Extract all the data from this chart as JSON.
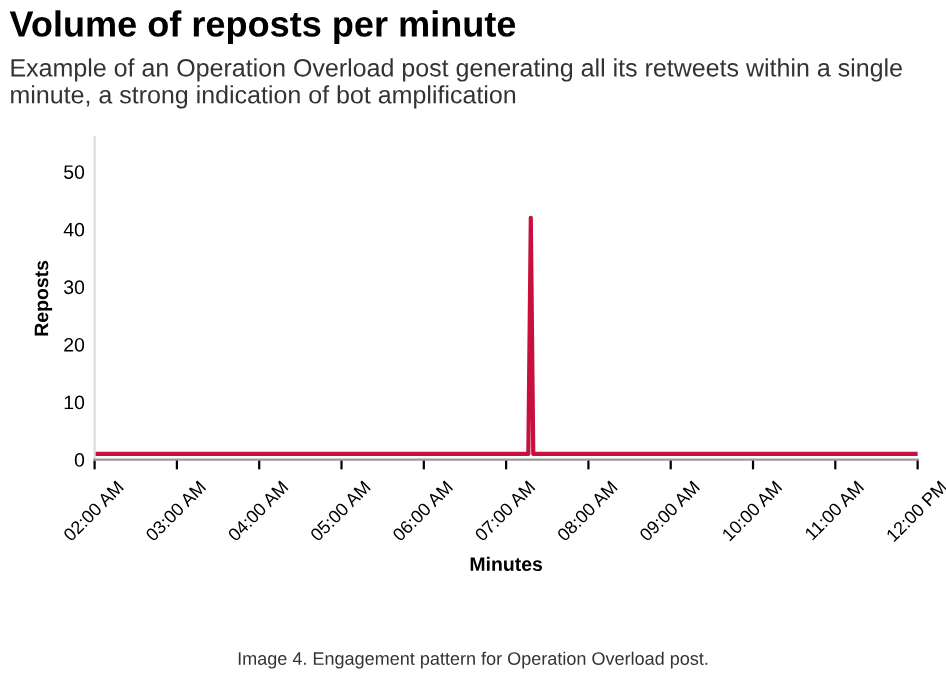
{
  "chart_data": {
    "type": "line",
    "title": "Volume of reposts per minute",
    "subtitle": "Example of an Operation Overload post generating all its retweets within a single minute, a strong indication of bot amplification",
    "xlabel": "Minutes",
    "ylabel": "Reposts",
    "annotations": [
      "Image 4. Engagement pattern for Operation Overload post."
    ],
    "x": [
      2.0,
      7.27,
      7.3,
      7.33,
      12.0
    ],
    "series": [
      {
        "color": "#c8103e",
        "values": [
          1,
          1,
          42,
          1,
          1
        ]
      }
    ],
    "xlim": [
      2,
      12
    ],
    "ylim": [
      0,
      56
    ],
    "xticks": [
      {
        "value": 2,
        "label": "02:00 AM"
      },
      {
        "value": 3,
        "label": "03:00 AM"
      },
      {
        "value": 4,
        "label": "04:00 AM"
      },
      {
        "value": 5,
        "label": "05:00 AM"
      },
      {
        "value": 6,
        "label": "06:00 AM"
      },
      {
        "value": 7,
        "label": "07:00 AM"
      },
      {
        "value": 8,
        "label": "08:00 AM"
      },
      {
        "value": 9,
        "label": "09:00 AM"
      },
      {
        "value": 10,
        "label": "10:00 AM"
      },
      {
        "value": 11,
        "label": "11:00 AM"
      },
      {
        "value": 12,
        "label": "12:00 PM"
      }
    ],
    "yticks": [
      0,
      10,
      20,
      30,
      40,
      50
    ],
    "grid": false,
    "legend": false,
    "marker": "none",
    "line_style": "solid"
  }
}
